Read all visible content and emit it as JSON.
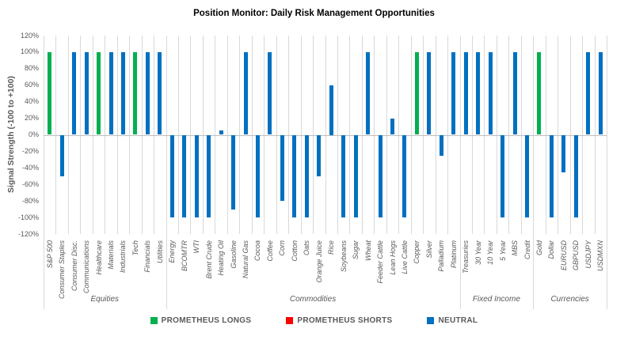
{
  "title": "Position Monitor: Daily Risk Management Opportunities",
  "y_axis": {
    "title": "Signal Strength (-100 to +100)",
    "ticks": [
      "120%",
      "100%",
      "80%",
      "60%",
      "40%",
      "20%",
      "0%",
      "-20%",
      "-40%",
      "-60%",
      "-80%",
      "-100%",
      "-120%"
    ]
  },
  "legend": [
    {
      "label": "PROMETHEUS LONGS",
      "signal": "long"
    },
    {
      "label": "PROMETHEUS SHORTS",
      "signal": "short"
    },
    {
      "label": "NEUTRAL",
      "signal": "neutral"
    }
  ],
  "colors": {
    "long": "#00B050",
    "short": "#FF0000",
    "neutral": "#0070C0",
    "gridline": "#D9D9D9",
    "zero_line": "#BFBFBF",
    "axis_text": "#595959",
    "title_text": "#000000"
  },
  "chart_data": {
    "type": "bar",
    "title": "Position Monitor: Daily Risk Management Opportunities",
    "xlabel": "",
    "ylabel": "Signal Strength (-100 to +100)",
    "ylim": [
      -120,
      120
    ],
    "y_unit": "percent",
    "grid": "vertical-only",
    "legend_position": "bottom",
    "groups": [
      {
        "name": "Equities",
        "items": [
          {
            "label": "S&P 500",
            "value": 100,
            "signal": "long"
          },
          {
            "label": "Consumer Staples",
            "value": -50,
            "signal": "neutral"
          },
          {
            "label": "Consumer Disc.",
            "value": 100,
            "signal": "neutral"
          },
          {
            "label": "Communications",
            "value": 100,
            "signal": "neutral"
          },
          {
            "label": "Healthcare",
            "value": 100,
            "signal": "long"
          },
          {
            "label": "Materials",
            "value": 100,
            "signal": "neutral"
          },
          {
            "label": "Industrials",
            "value": 100,
            "signal": "neutral"
          },
          {
            "label": "Tech",
            "value": 100,
            "signal": "long"
          },
          {
            "label": "Financials",
            "value": 100,
            "signal": "neutral"
          },
          {
            "label": "Utilities",
            "value": 100,
            "signal": "neutral"
          }
        ]
      },
      {
        "name": "Commodities",
        "items": [
          {
            "label": "Energy",
            "value": -100,
            "signal": "neutral"
          },
          {
            "label": "BCOMTR",
            "value": -100,
            "signal": "neutral"
          },
          {
            "label": "WTI",
            "value": -100,
            "signal": "neutral"
          },
          {
            "label": "Brent Crude",
            "value": -100,
            "signal": "neutral"
          },
          {
            "label": "Heating Oil",
            "value": 5,
            "signal": "neutral"
          },
          {
            "label": "Gasoline",
            "value": -90,
            "signal": "neutral"
          },
          {
            "label": "Natural Gas",
            "value": 100,
            "signal": "neutral"
          },
          {
            "label": "Cocoa",
            "value": -100,
            "signal": "neutral"
          },
          {
            "label": "Coffee",
            "value": 100,
            "signal": "neutral"
          },
          {
            "label": "Corn",
            "value": -80,
            "signal": "neutral"
          },
          {
            "label": "Cotton",
            "value": -100,
            "signal": "neutral"
          },
          {
            "label": "Oats",
            "value": -100,
            "signal": "neutral"
          },
          {
            "label": "Orange Juice",
            "value": -50,
            "signal": "neutral"
          },
          {
            "label": "Rice",
            "value": 60,
            "signal": "neutral"
          },
          {
            "label": "Soybeans",
            "value": -100,
            "signal": "neutral"
          },
          {
            "label": "Sugar",
            "value": -100,
            "signal": "neutral"
          },
          {
            "label": "Wheat",
            "value": 100,
            "signal": "neutral"
          },
          {
            "label": "Feeder Cattle",
            "value": -100,
            "signal": "neutral"
          },
          {
            "label": "Lean Hogs",
            "value": 20,
            "signal": "neutral"
          },
          {
            "label": "Live Cattle",
            "value": -100,
            "signal": "neutral"
          },
          {
            "label": "Copper",
            "value": 100,
            "signal": "long"
          },
          {
            "label": "Silver",
            "value": 100,
            "signal": "neutral"
          },
          {
            "label": "Palladium",
            "value": -25,
            "signal": "neutral"
          },
          {
            "label": "Platinum",
            "value": 100,
            "signal": "neutral"
          }
        ]
      },
      {
        "name": "Fixed Income",
        "items": [
          {
            "label": "Treasuries",
            "value": 100,
            "signal": "neutral"
          },
          {
            "label": "30 Year",
            "value": 100,
            "signal": "neutral"
          },
          {
            "label": "10 Year",
            "value": 100,
            "signal": "neutral"
          },
          {
            "label": "5 Year",
            "value": -100,
            "signal": "neutral"
          },
          {
            "label": "MBS",
            "value": 100,
            "signal": "neutral"
          },
          {
            "label": "Credit",
            "value": -100,
            "signal": "neutral"
          }
        ]
      },
      {
        "name": "Currencies",
        "items": [
          {
            "label": "Gold",
            "value": 100,
            "signal": "long"
          },
          {
            "label": "Dollar",
            "value": -100,
            "signal": "neutral"
          },
          {
            "label": "EURUSD",
            "value": -45,
            "signal": "neutral"
          },
          {
            "label": "GBPUSD",
            "value": -100,
            "signal": "neutral"
          },
          {
            "label": "USDJPY",
            "value": 100,
            "signal": "neutral"
          },
          {
            "label": "USDMXN",
            "value": 100,
            "signal": "neutral"
          }
        ]
      }
    ]
  }
}
